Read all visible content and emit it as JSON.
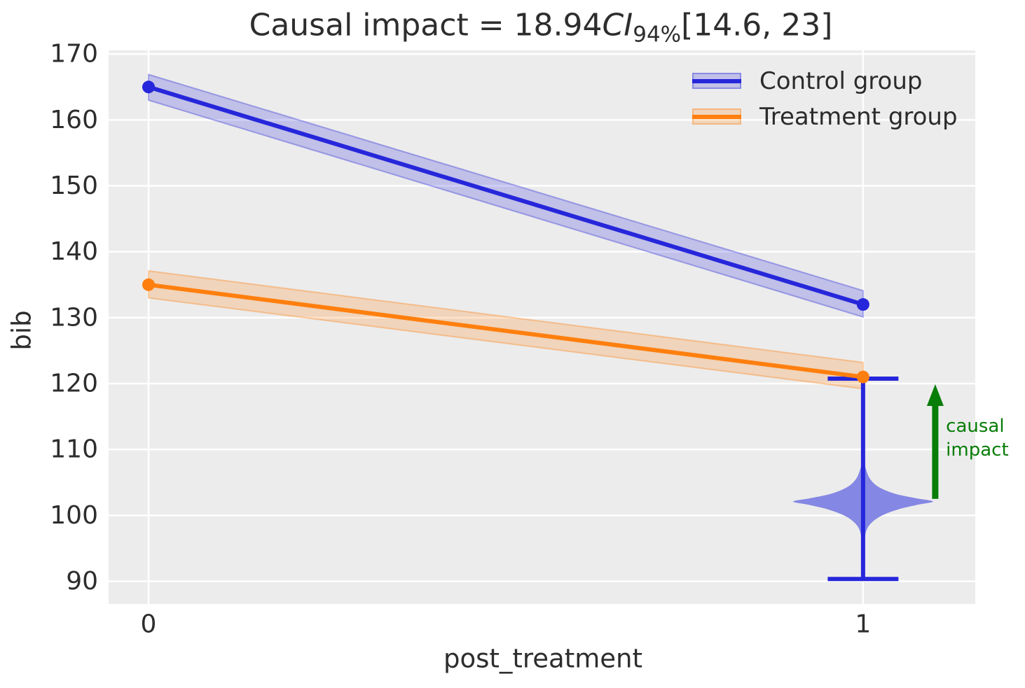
{
  "chart_data": {
    "type": "line",
    "title": {
      "prefix": "Causal impact = 18.94",
      "ci": "CI",
      "ci_sub": "94%",
      "interval": "[14.6, 23]"
    },
    "xlabel": "post_treatment",
    "ylabel": "bib",
    "xlim": [
      -0.0559,
      1.157
    ],
    "ylim": [
      86.55,
      170.55
    ],
    "xticks": [
      0,
      1
    ],
    "yticks": [
      90,
      100,
      110,
      120,
      130,
      140,
      150,
      160,
      170
    ],
    "grid": true,
    "legend_position": "upper right",
    "colors": {
      "plot_background": "#ececec",
      "grid": "#ffffff",
      "text": "#2d2d2d",
      "control_blue": "#2626db",
      "treatment_orange": "#ff7f0e",
      "violin_fill": "#8487e3",
      "arrow_green": "#087d08"
    },
    "series": [
      {
        "name": "Control group",
        "color": "#2626db",
        "band_fill": "rgba(38,38,219,0.22)",
        "band_edge": "rgba(38,38,219,0.35)",
        "x": [
          0,
          1
        ],
        "y": [
          165,
          132
        ],
        "ci_lower": [
          163.0,
          130.1
        ],
        "ci_upper": [
          166.9,
          134.1
        ]
      },
      {
        "name": "Treatment group",
        "color": "#ff7f0e",
        "band_fill": "rgba(255,127,14,0.22)",
        "band_edge": "rgba(255,127,14,0.35)",
        "x": [
          0,
          1
        ],
        "y": [
          135,
          121
        ],
        "ci_lower": [
          133.0,
          119.2
        ],
        "ci_upper": [
          137.1,
          123.2
        ]
      }
    ],
    "violin": {
      "x": 1,
      "fill": "#8487e3",
      "whisker_color": "#2626db",
      "whisker_low": 90.35,
      "whisker_high": 120.75,
      "cap_halfwidth": 0.0495,
      "profile": [
        [
          110.8,
          0.0
        ],
        [
          108.5,
          0.0015
        ],
        [
          107.0,
          0.004
        ],
        [
          105.5,
          0.01
        ],
        [
          104.3,
          0.022
        ],
        [
          103.3,
          0.044
        ],
        [
          102.6,
          0.074
        ],
        [
          102.1,
          0.098
        ],
        [
          101.6,
          0.076
        ],
        [
          100.9,
          0.049
        ],
        [
          100.0,
          0.027
        ],
        [
          99.0,
          0.013
        ],
        [
          97.8,
          0.005
        ],
        [
          96.0,
          0.0015
        ],
        [
          94.0,
          0.0
        ]
      ]
    },
    "arrow": {
      "x": 1.101,
      "from_value": 102.5,
      "to_value": 119.9,
      "color": "#087d08"
    },
    "annotation": {
      "x": 1.116,
      "lines": [
        "causal",
        "impact"
      ],
      "anchor_value": 113.55,
      "color": "#087d08"
    }
  }
}
